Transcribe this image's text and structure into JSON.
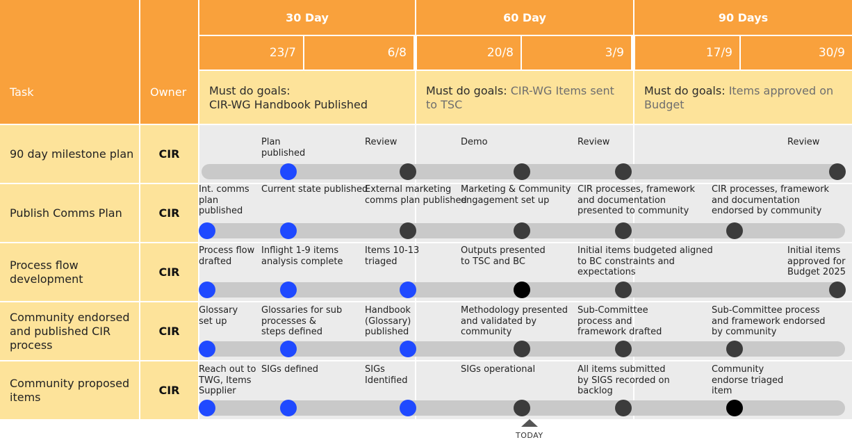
{
  "header": {
    "task_label": "Task",
    "owner_label": "Owner",
    "periods": [
      "30 Day",
      "60 Day",
      "90 Days"
    ],
    "dates": [
      "23/7",
      "6/8",
      "20/8",
      "3/9",
      "17/9",
      "30/9"
    ]
  },
  "goals": [
    {
      "prefix": "Must do goals:",
      "text": "CIR-WG Handbook Published"
    },
    {
      "prefix": "Must do goals:",
      "text": "CIR-WG Items sent to TSC"
    },
    {
      "prefix": "Must do goals:",
      "text": "Items approved on Budget"
    }
  ],
  "rows": [
    {
      "task": "90 day milestone plan",
      "owner": "CIR",
      "milestones": [
        {
          "label": "Plan\npublished",
          "status": "done"
        },
        {
          "label": "Review",
          "status": "pending"
        },
        {
          "label": "Demo",
          "status": "pending"
        },
        {
          "label": "Review",
          "status": "pending"
        },
        {
          "label": "Review",
          "status": "pending"
        }
      ]
    },
    {
      "task": "Publish Comms Plan",
      "owner": "CIR",
      "milestones": [
        {
          "label": "Int. comms\nplan\npublished",
          "status": "done"
        },
        {
          "label": "Current state published",
          "status": "done"
        },
        {
          "label": "External marketing\ncomms plan published",
          "status": "pending"
        },
        {
          "label": "Marketing & Community\nengagement set up",
          "status": "pending"
        },
        {
          "label": "CIR processes, framework\nand documentation\npresented to community",
          "status": "pending"
        },
        {
          "label": "CIR processes, framework\nand documentation\nendorsed by community",
          "status": "pending"
        }
      ]
    },
    {
      "task": "Process flow development",
      "owner": "CIR",
      "milestones": [
        {
          "label": "Process flow\ndrafted",
          "status": "done"
        },
        {
          "label": "Inflight 1-9 items\nanalysis complete",
          "status": "done"
        },
        {
          "label": "Items 10-13\ntriaged",
          "status": "done"
        },
        {
          "label": "Outputs presented\nto TSC and BC",
          "status": "current"
        },
        {
          "label": "Initial items budgeted aligned\nto BC constraints and\nexpectations",
          "status": "pending"
        },
        {
          "label": "Initial items\napproved for\nBudget 2025",
          "status": "pending"
        }
      ]
    },
    {
      "task": "Community endorsed and published CIR process",
      "owner": "CIR",
      "milestones": [
        {
          "label": "Glossary\nset up",
          "status": "done"
        },
        {
          "label": "Glossaries for sub\nprocesses &\nsteps defined",
          "status": "done"
        },
        {
          "label": "Handbook\n(Glossary)\npublished",
          "status": "done"
        },
        {
          "label": "Methodology presented\nand validated by\ncommunity",
          "status": "pending"
        },
        {
          "label": "Sub-Committee\nprocess and\nframework drafted",
          "status": "pending"
        },
        {
          "label": "Sub-Committee process\nand framework endorsed\nby community",
          "status": "pending"
        }
      ]
    },
    {
      "task": "Community proposed items",
      "owner": "CIR",
      "milestones": [
        {
          "label": "Reach out to\nTWG, Items\nSupplier",
          "status": "done"
        },
        {
          "label": "SIGs defined",
          "status": "done"
        },
        {
          "label": "SIGs\nIdentified",
          "status": "done"
        },
        {
          "label": "SIGs operational",
          "status": "pending"
        },
        {
          "label": "All items submitted\nby SIGS recorded on\nbacklog",
          "status": "pending"
        },
        {
          "label": "Community\nendorse triaged\nitem",
          "status": "current"
        }
      ]
    }
  ],
  "today_label": "TODAY",
  "colors": {
    "done": "#1f49ff",
    "pending": "#3c3c3c",
    "current": "#000000",
    "header": "#f9a13c",
    "goal_bg": "#fde39a",
    "row_bg": "#ebebeb"
  }
}
